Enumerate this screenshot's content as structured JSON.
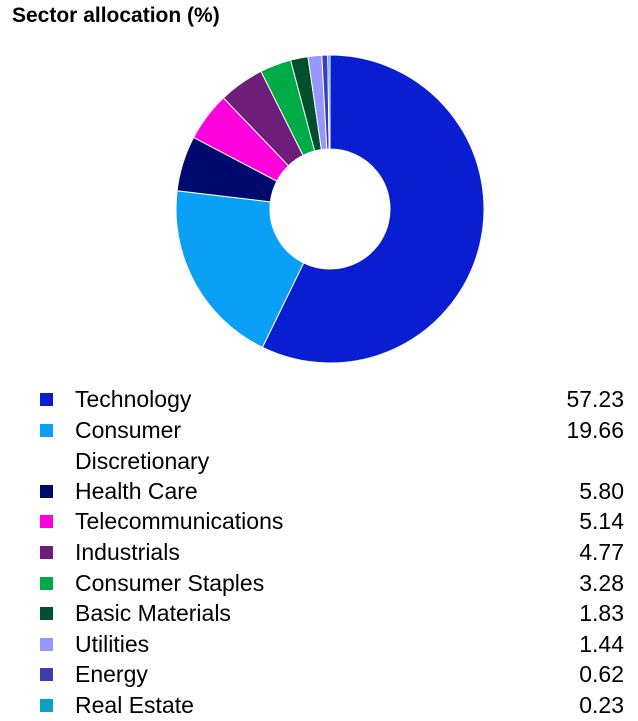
{
  "chart_data": {
    "type": "pie",
    "title": "Sector allocation (%)",
    "donut": true,
    "legend_placement": "bottom",
    "slices": [
      {
        "name": "Technology",
        "value": 57.23,
        "color": "#0a1ed1"
      },
      {
        "name": "Consumer\nDiscretionary",
        "value": 19.66,
        "color": "#0aa0f5"
      },
      {
        "name": "Health Care",
        "value": 5.8,
        "color": "#000a6e"
      },
      {
        "name": "Telecommunications",
        "value": 5.14,
        "color": "#ff00dc"
      },
      {
        "name": "Industrials",
        "value": 4.77,
        "color": "#6e1e78"
      },
      {
        "name": "Consumer Staples",
        "value": 3.28,
        "color": "#00aa46"
      },
      {
        "name": "Basic Materials",
        "value": 1.83,
        "color": "#00502d"
      },
      {
        "name": "Utilities",
        "value": 1.44,
        "color": "#9696ff"
      },
      {
        "name": "Energy",
        "value": 0.62,
        "color": "#3c3cb4"
      },
      {
        "name": "Real Estate",
        "value": 0.23,
        "color": "#0aa0c8"
      }
    ],
    "value_labels": [
      "57.23",
      "19.66",
      "5.80",
      "5.14",
      "4.77",
      "3.28",
      "1.83",
      "1.44",
      "0.62",
      "0.23"
    ]
  }
}
